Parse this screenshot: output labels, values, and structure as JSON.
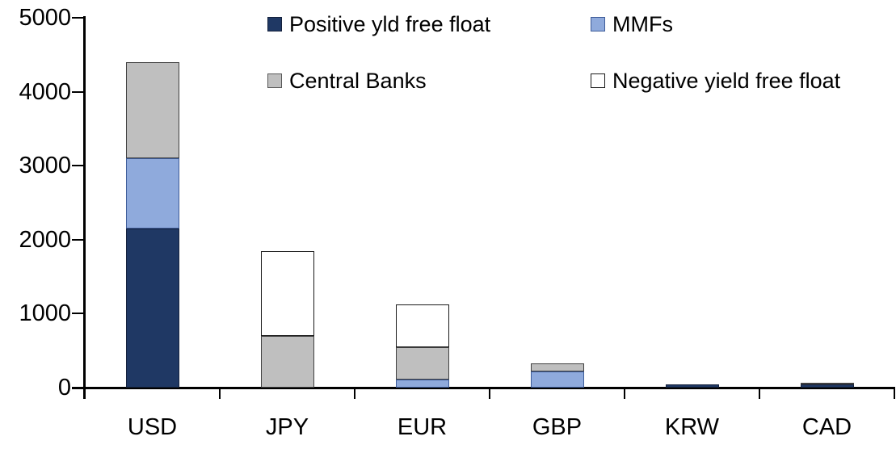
{
  "chart_data": {
    "type": "bar",
    "stacked": true,
    "title": "",
    "xlabel": "",
    "ylabel": "",
    "categories": [
      "USD",
      "JPY",
      "EUR",
      "GBP",
      "KRW",
      "CAD"
    ],
    "series": [
      {
        "name": "Positive yld free float",
        "color": "#1F3864",
        "border": "#14213C",
        "values": [
          2150,
          0,
          0,
          0,
          45,
          40
        ]
      },
      {
        "name": "MMFs",
        "color": "#8FAADC",
        "border": "#3E5C99",
        "values": [
          950,
          0,
          110,
          220,
          0,
          0
        ]
      },
      {
        "name": "Central Banks",
        "color": "#BFBFBF",
        "border": "#404040",
        "values": [
          1300,
          700,
          440,
          110,
          0,
          25
        ]
      },
      {
        "name": "Negative yield free float",
        "color": "#FFFFFF",
        "border": "#1A1A1A",
        "values": [
          0,
          1150,
          570,
          0,
          0,
          0
        ]
      }
    ],
    "totals": [
      4400,
      1850,
      1120,
      330,
      45,
      65
    ],
    "ylim": [
      0,
      5000
    ],
    "ytick_interval": 1000,
    "yticks": [
      {
        "label": "0",
        "value": 0
      },
      {
        "label": "1000",
        "value": 1000
      },
      {
        "label": "2000",
        "value": 2000
      },
      {
        "label": "3000",
        "value": 3000
      },
      {
        "label": "4000",
        "value": 4000
      },
      {
        "label": "5000",
        "value": 5000
      }
    ],
    "grid": false,
    "legend_position": "top"
  },
  "legend": [
    {
      "label": "Positive yld free float",
      "color": "#1F3864",
      "border": "#14213C"
    },
    {
      "label": "MMFs",
      "color": "#8FAADC",
      "border": "#3E5C99"
    },
    {
      "label": "Central Banks",
      "color": "#BFBFBF",
      "border": "#595959"
    },
    {
      "label": "Negative yield free float",
      "color": "#FFFFFF",
      "border": "#1A1A1A"
    }
  ],
  "colors": {
    "axis": "#000000",
    "text": "#000000",
    "background": "#FFFFFF"
  }
}
